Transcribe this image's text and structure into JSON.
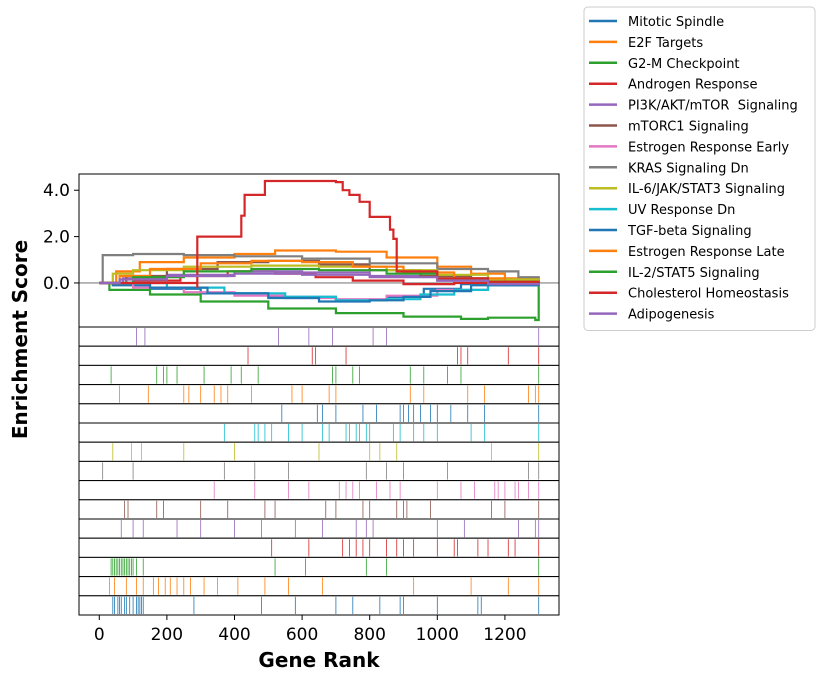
{
  "chart_data": {
    "type": "line",
    "title": "",
    "xlabel": "Gene Rank",
    "ylabel": "Enrichment Score",
    "xlim": [
      -60,
      1360
    ],
    "ylim": [
      -1.9,
      4.7
    ],
    "x_ticks": [
      0,
      200,
      400,
      600,
      800,
      1000,
      1200
    ],
    "x_tick_labels": [
      "0",
      "200",
      "400",
      "600",
      "800",
      "1000",
      "1200"
    ],
    "y_ticks": [
      0,
      2,
      4
    ],
    "y_tick_labels": [
      "0.0",
      "2.0",
      "4.0"
    ],
    "zero_line": true,
    "legend_placement": "outside-top-right",
    "series": [
      {
        "name": "Mitotic Spindle",
        "color": "#1f77b4",
        "es_curve": [
          [
            0,
            0
          ],
          [
            40,
            -0.1
          ],
          [
            150,
            -0.25
          ],
          [
            300,
            -0.45
          ],
          [
            500,
            -0.6
          ],
          [
            700,
            -0.75
          ],
          [
            850,
            -0.6
          ],
          [
            960,
            -0.25
          ],
          [
            1070,
            -0.05
          ],
          [
            1200,
            0
          ],
          [
            1300,
            0
          ]
        ],
        "hits": [
          40,
          45,
          55,
          60,
          65,
          75,
          80,
          90,
          100,
          110,
          115,
          120,
          125,
          130,
          280,
          480,
          580,
          700,
          750,
          830,
          890,
          900,
          1000,
          1120,
          1130,
          1300
        ]
      },
      {
        "name": "E2F Targets",
        "color": "#ff7f0e",
        "es_curve": [
          [
            0,
            0
          ],
          [
            50,
            0.5
          ],
          [
            120,
            0.9
          ],
          [
            250,
            1.1
          ],
          [
            400,
            1.25
          ],
          [
            520,
            1.4
          ],
          [
            700,
            1.35
          ],
          [
            850,
            1.1
          ],
          [
            1000,
            0.7
          ],
          [
            1100,
            0.4
          ],
          [
            1200,
            0.2
          ],
          [
            1300,
            0
          ]
        ],
        "hits": [
          30,
          45,
          80,
          110,
          130,
          160,
          175,
          195,
          210,
          230,
          250,
          270,
          310,
          350,
          410,
          490,
          560,
          660,
          930,
          1100,
          1210,
          1300
        ]
      },
      {
        "name": "G2-M Checkpoint",
        "color": "#2ca02c",
        "es_curve": [
          [
            0,
            0
          ],
          [
            30,
            -0.3
          ],
          [
            150,
            -0.5
          ],
          [
            300,
            -0.8
          ],
          [
            500,
            -1.1
          ],
          [
            700,
            -1.3
          ],
          [
            900,
            -1.45
          ],
          [
            1070,
            -1.55
          ],
          [
            1150,
            -1.5
          ],
          [
            1290,
            -1.6
          ],
          [
            1300,
            0
          ]
        ],
        "hits": [
          35,
          40,
          45,
          50,
          55,
          60,
          65,
          70,
          75,
          80,
          85,
          90,
          95,
          100,
          110,
          130,
          520,
          610,
          790,
          850,
          1300
        ]
      },
      {
        "name": "Androgen Response",
        "color": "#d62728",
        "es_curve": [
          [
            0,
            0
          ],
          [
            100,
            0.1
          ],
          [
            240,
            0.3
          ],
          [
            380,
            0.5
          ],
          [
            520,
            0.4
          ],
          [
            640,
            0.25
          ],
          [
            750,
            0.1
          ],
          [
            900,
            -0.05
          ],
          [
            1050,
            0
          ],
          [
            1200,
            0.05
          ],
          [
            1300,
            0
          ]
        ],
        "hits": [
          510,
          620,
          720,
          740,
          760,
          780,
          800,
          850,
          880,
          900,
          930,
          1000,
          1050,
          1060,
          1120,
          1150,
          1210,
          1230,
          1300
        ]
      },
      {
        "name": "PI3K/AKT/mTOR  Signaling",
        "color": "#9467bd",
        "es_curve": [
          [
            0,
            0
          ],
          [
            70,
            0.2
          ],
          [
            200,
            0.35
          ],
          [
            400,
            0.5
          ],
          [
            600,
            0.45
          ],
          [
            800,
            0.3
          ],
          [
            1000,
            0.1
          ],
          [
            1150,
            -0.05
          ],
          [
            1300,
            0
          ]
        ],
        "hits": [
          65,
          100,
          130,
          230,
          300,
          400,
          480,
          580,
          660,
          760,
          790,
          810,
          1000,
          1080,
          1240,
          1290,
          1300
        ]
      },
      {
        "name": "mTORC1 Signaling",
        "color": "#8c564b",
        "es_curve": [
          [
            0,
            0
          ],
          [
            80,
            0.3
          ],
          [
            200,
            0.6
          ],
          [
            350,
            0.9
          ],
          [
            500,
            0.95
          ],
          [
            650,
            0.8
          ],
          [
            800,
            0.55
          ],
          [
            950,
            0.3
          ],
          [
            1100,
            0.1
          ],
          [
            1300,
            0
          ]
        ],
        "hits": [
          75,
          85,
          170,
          190,
          300,
          380,
          490,
          520,
          670,
          700,
          780,
          800,
          880,
          900,
          910,
          980,
          1160,
          1200,
          1300
        ]
      },
      {
        "name": "Estrogen Response Early",
        "color": "#e377c2",
        "es_curve": [
          [
            0,
            0
          ],
          [
            100,
            -0.2
          ],
          [
            250,
            -0.4
          ],
          [
            400,
            -0.55
          ],
          [
            550,
            -0.65
          ],
          [
            700,
            -0.7
          ],
          [
            850,
            -0.55
          ],
          [
            1000,
            -0.3
          ],
          [
            1150,
            -0.1
          ],
          [
            1300,
            0
          ]
        ],
        "hits": [
          340,
          460,
          560,
          620,
          710,
          730,
          750,
          770,
          820,
          860,
          890,
          1000,
          1070,
          1110,
          1170,
          1180,
          1200,
          1230,
          1240,
          1270,
          1300
        ]
      },
      {
        "name": "KRAS Signaling Dn",
        "color": "#7f7f7f",
        "es_curve": [
          [
            0,
            0
          ],
          [
            10,
            1.2
          ],
          [
            100,
            1.25
          ],
          [
            250,
            1.2
          ],
          [
            400,
            1.15
          ],
          [
            600,
            1.05
          ],
          [
            800,
            0.85
          ],
          [
            1000,
            0.6
          ],
          [
            1150,
            0.5
          ],
          [
            1240,
            0.25
          ],
          [
            1300,
            0
          ]
        ],
        "hits": [
          10,
          100,
          370,
          460,
          560,
          790,
          850,
          900,
          1030,
          1270,
          1300
        ]
      },
      {
        "name": "IL-6/JAK/STAT3 Signaling",
        "color": "#bcbd22",
        "es_curve": [
          [
            0,
            0
          ],
          [
            40,
            0.4
          ],
          [
            100,
            0.55
          ],
          [
            250,
            0.7
          ],
          [
            450,
            0.75
          ],
          [
            650,
            0.7
          ],
          [
            850,
            0.55
          ],
          [
            1000,
            0.35
          ],
          [
            1150,
            0.15
          ],
          [
            1300,
            0
          ]
        ],
        "hits": [
          40,
          95,
          125,
          250,
          400,
          650,
          800,
          830,
          880,
          1160,
          1300
        ]
      },
      {
        "name": "UV Response Dn",
        "color": "#17becf",
        "es_curve": [
          [
            0,
            0
          ],
          [
            200,
            -0.2
          ],
          [
            370,
            -0.45
          ],
          [
            550,
            -0.6
          ],
          [
            700,
            -0.75
          ],
          [
            850,
            -0.7
          ],
          [
            950,
            -0.5
          ],
          [
            1050,
            -0.3
          ],
          [
            1150,
            -0.1
          ],
          [
            1300,
            0
          ]
        ],
        "hits": [
          370,
          460,
          470,
          490,
          510,
          560,
          600,
          660,
          680,
          730,
          740,
          760,
          770,
          790,
          800,
          870,
          890,
          930,
          960,
          1000,
          1100,
          1140,
          1300
        ]
      },
      {
        "name": "TGF-beta Signaling",
        "color": "#1f77b4",
        "es_curve": [
          [
            0,
            0
          ],
          [
            150,
            -0.2
          ],
          [
            320,
            -0.45
          ],
          [
            500,
            -0.65
          ],
          [
            650,
            -0.8
          ],
          [
            800,
            -0.75
          ],
          [
            900,
            -0.6
          ],
          [
            980,
            -0.35
          ],
          [
            1100,
            -0.1
          ],
          [
            1300,
            0
          ]
        ],
        "hits": [
          540,
          645,
          660,
          700,
          780,
          820,
          890,
          900,
          915,
          930,
          950,
          980,
          1000,
          1040,
          1090,
          1140,
          1300
        ]
      },
      {
        "name": "Estrogen Response Late",
        "color": "#ff7f0e",
        "es_curve": [
          [
            0,
            0
          ],
          [
            60,
            0.3
          ],
          [
            150,
            0.6
          ],
          [
            300,
            0.85
          ],
          [
            450,
            0.95
          ],
          [
            600,
            0.9
          ],
          [
            750,
            0.7
          ],
          [
            900,
            0.45
          ],
          [
            1050,
            0.2
          ],
          [
            1200,
            0.05
          ],
          [
            1300,
            0
          ]
        ],
        "hits": [
          60,
          145,
          250,
          265,
          300,
          340,
          360,
          380,
          450,
          570,
          600,
          680,
          700,
          920,
          960,
          1090,
          1140,
          1270,
          1290,
          1300
        ]
      },
      {
        "name": "IL-2/STAT5 Signaling",
        "color": "#2ca02c",
        "es_curve": [
          [
            0,
            0
          ],
          [
            100,
            0.25
          ],
          [
            250,
            0.5
          ],
          [
            450,
            0.6
          ],
          [
            650,
            0.55
          ],
          [
            850,
            0.4
          ],
          [
            1000,
            0.2
          ],
          [
            1150,
            0.05
          ],
          [
            1300,
            0
          ]
        ],
        "hits": [
          35,
          170,
          190,
          200,
          230,
          310,
          390,
          420,
          470,
          690,
          700,
          750,
          770,
          920,
          960,
          1030,
          1070,
          1300
        ]
      },
      {
        "name": "Cholesterol Homeostasis",
        "color": "#d62728",
        "es_curve": [
          [
            0,
            0
          ],
          [
            290,
            -0.2
          ],
          [
            290,
            2.0
          ],
          [
            420,
            2.0
          ],
          [
            420,
            2.9
          ],
          [
            430,
            3.8
          ],
          [
            490,
            3.8
          ],
          [
            490,
            4.4
          ],
          [
            700,
            4.35
          ],
          [
            720,
            4.0
          ],
          [
            740,
            3.8
          ],
          [
            770,
            3.5
          ],
          [
            800,
            2.85
          ],
          [
            840,
            2.85
          ],
          [
            860,
            2.3
          ],
          [
            870,
            1.9
          ],
          [
            880,
            1.9
          ],
          [
            880,
            0.5
          ],
          [
            1000,
            0.2
          ],
          [
            1150,
            0.05
          ],
          [
            1300,
            0
          ]
        ],
        "hits": [
          440,
          630,
          640,
          730,
          1060,
          1070,
          1090,
          1210,
          1300
        ]
      },
      {
        "name": "Adipogenesis",
        "color": "#9467bd",
        "es_curve": [
          [
            0,
            0
          ],
          [
            60,
            0.15
          ],
          [
            200,
            0.3
          ],
          [
            400,
            0.4
          ],
          [
            600,
            0.35
          ],
          [
            800,
            0.25
          ],
          [
            1000,
            0.1
          ],
          [
            1150,
            -0.05
          ],
          [
            1300,
            0
          ]
        ],
        "hits": [
          110,
          135,
          530,
          620,
          690,
          810,
          850,
          1300
        ]
      }
    ]
  }
}
